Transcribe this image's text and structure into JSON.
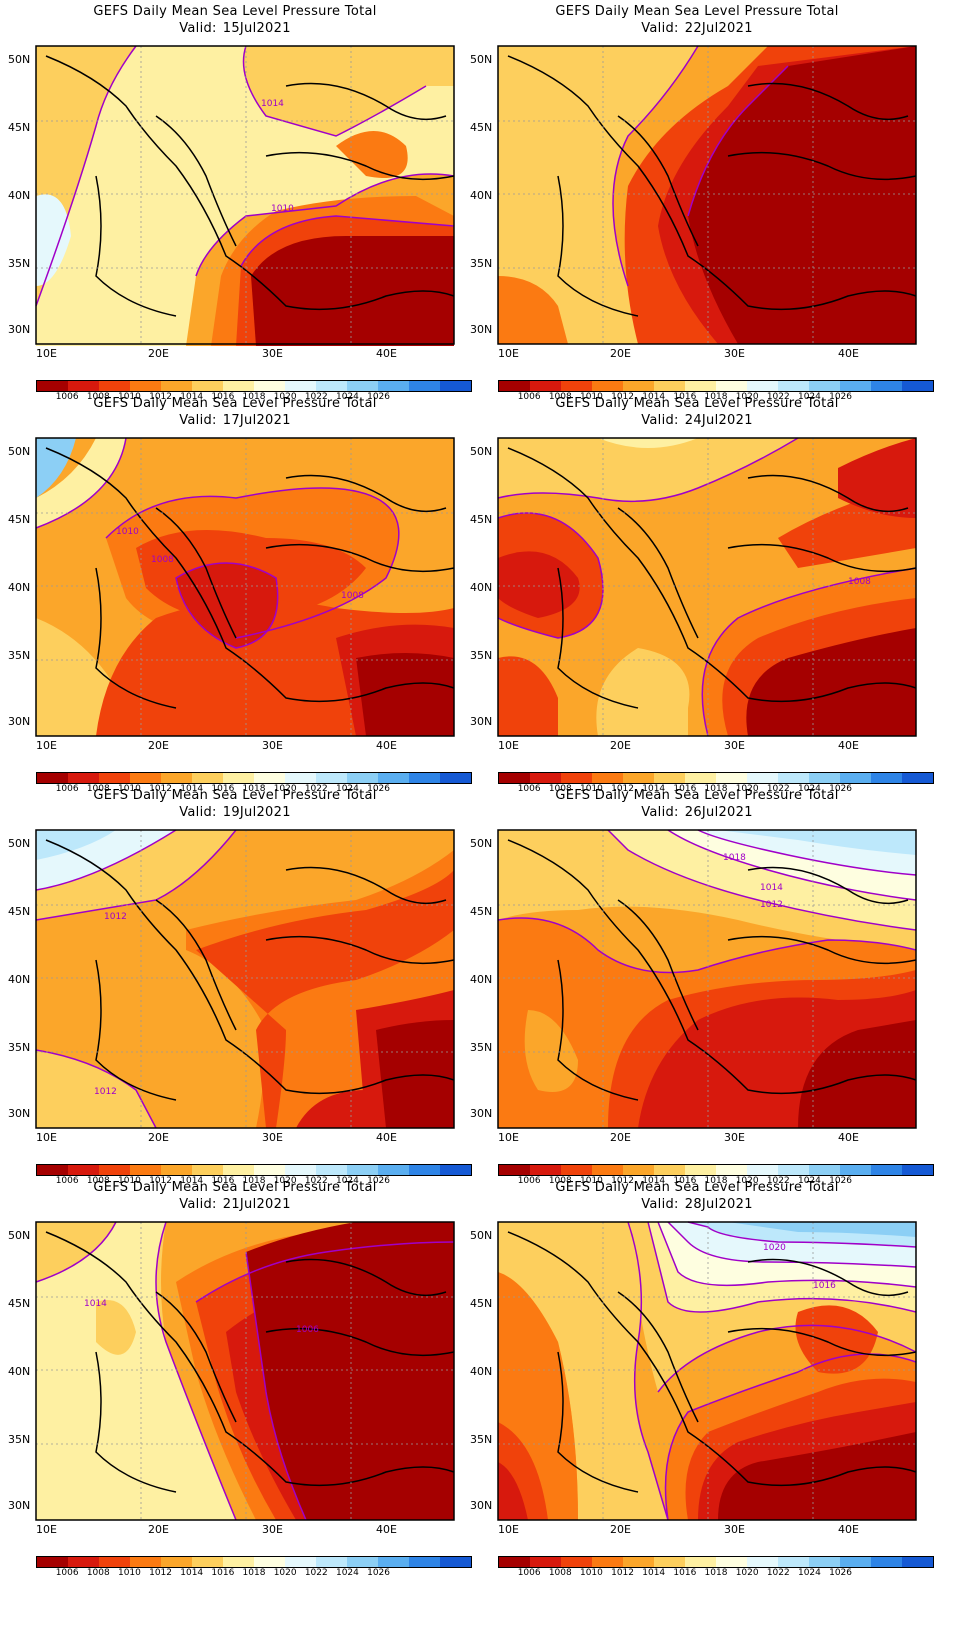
{
  "figure": {
    "panel_title": "GEFS Daily Mean Sea Level Pressure Total",
    "valid_prefix": "Valid:",
    "lat_labels": [
      "50N",
      "45N",
      "40N",
      "35N",
      "30N"
    ],
    "lon_labels": [
      "10E",
      "20E",
      "30E",
      "40E"
    ],
    "colorbar": {
      "colors": [
        "#a50000",
        "#d7190d",
        "#f0420b",
        "#fb7a12",
        "#fba62a",
        "#fdcf5d",
        "#fef0a2",
        "#fefee0",
        "#e5f8fc",
        "#bde8fb",
        "#8ccff5",
        "#5aaef0",
        "#2e84e6",
        "#1559d4"
      ],
      "labels": [
        "1006",
        "1008",
        "1010",
        "1012",
        "1014",
        "1016",
        "1018",
        "1020",
        "1022",
        "1024",
        "1026"
      ]
    },
    "contour_color": "#a000c8"
  },
  "panels": [
    {
      "valid": "15Jul2021",
      "contour_labels": [
        "1014",
        "1010"
      ]
    },
    {
      "valid": "22Jul2021",
      "contour_labels": []
    },
    {
      "valid": "17Jul2021",
      "contour_labels": [
        "1010",
        "1008",
        "1008"
      ]
    },
    {
      "valid": "24Jul2021",
      "contour_labels": [
        "1008"
      ]
    },
    {
      "valid": "19Jul2021",
      "contour_labels": [
        "1012",
        "1012"
      ]
    },
    {
      "valid": "26Jul2021",
      "contour_labels": [
        "1018",
        "1014",
        "1012"
      ]
    },
    {
      "valid": "21Jul2021",
      "contour_labels": [
        "1014",
        "1006"
      ]
    },
    {
      "valid": "28Jul2021",
      "contour_labels": [
        "1020",
        "1016"
      ]
    }
  ]
}
